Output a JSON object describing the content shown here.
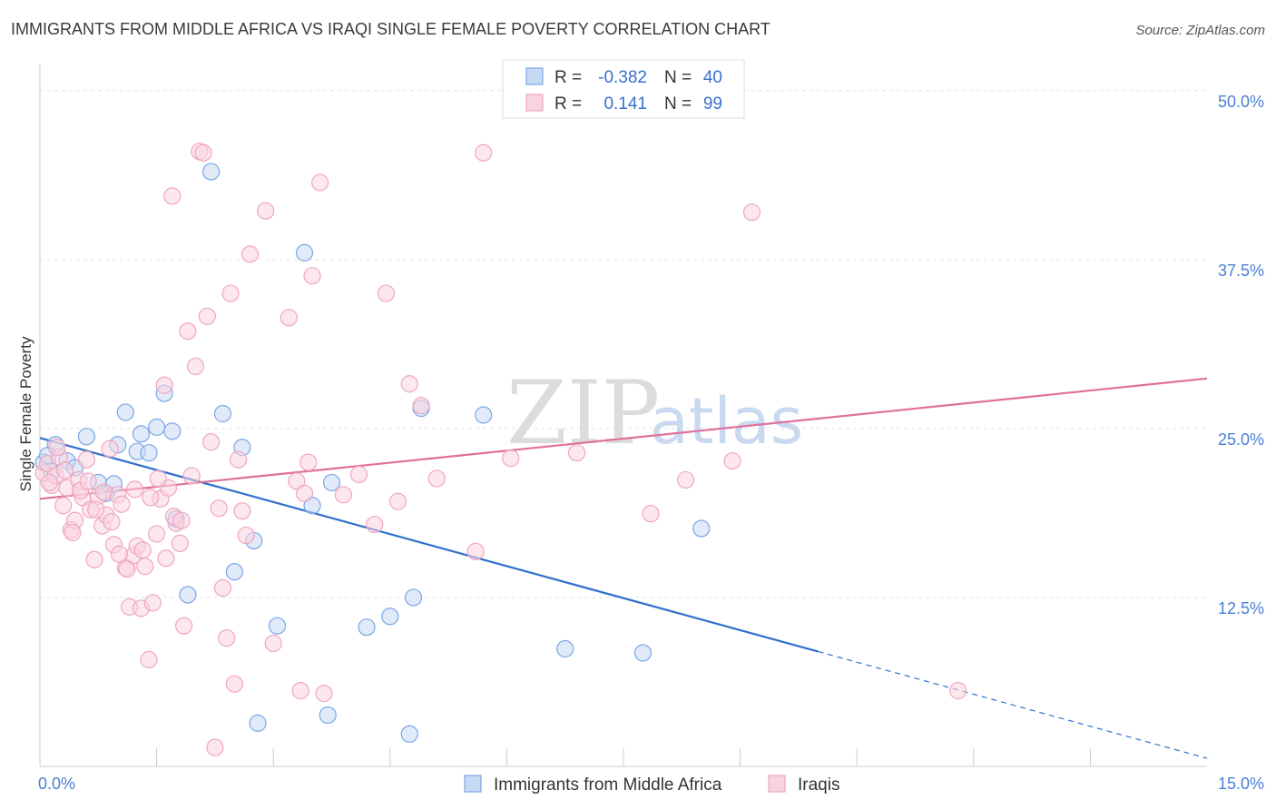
{
  "chart_data": {
    "type": "scatter",
    "title": "IMMIGRANTS FROM MIDDLE AFRICA VS IRAQI SINGLE FEMALE POVERTY CORRELATION CHART",
    "source": "Source: ZipAtlas.com",
    "ylabel": "Single Female Poverty",
    "xlim": [
      0,
      15
    ],
    "ylim": [
      0,
      52
    ],
    "x_tick_labels": [
      {
        "value": 0,
        "label": "0.0%"
      },
      {
        "value": 15,
        "label": "15.0%"
      }
    ],
    "y_tick_labels": [
      {
        "value": 12.5,
        "label": "12.5%"
      },
      {
        "value": 25,
        "label": "25.0%"
      },
      {
        "value": 37.5,
        "label": "37.5%"
      },
      {
        "value": 50,
        "label": "50.0%"
      }
    ],
    "x_minor_ticks": [
      1.5,
      3.0,
      4.5,
      6.0,
      7.5,
      9.0,
      10.5,
      12.0,
      13.5
    ],
    "watermark": {
      "zip": "ZIP",
      "atlas": "atlas"
    },
    "legend": [
      {
        "r_label": "R =",
        "r_value": "-0.382",
        "n_label": "N =",
        "n_value": "40"
      },
      {
        "r_label": "R =",
        "r_value": "0.141",
        "n_label": "N =",
        "n_value": "99"
      }
    ],
    "series": [
      {
        "name": "Immigrants from Middle Africa",
        "color": "#7aa7e6",
        "fill": "#c6d9f3",
        "line_color": "#2f6fcc",
        "trend": {
          "x0": 0,
          "y0": 24.3,
          "x1": 10.0,
          "y1": 8.5,
          "dash_to_x": 15.0,
          "dash_to_y": 0.6
        },
        "points": [
          [
            0.05,
            22.5
          ],
          [
            0.15,
            21.8
          ],
          [
            0.2,
            23.8
          ],
          [
            0.35,
            22.6
          ],
          [
            0.45,
            22.1
          ],
          [
            0.6,
            24.4
          ],
          [
            0.75,
            21.0
          ],
          [
            0.85,
            20.2
          ],
          [
            0.95,
            20.9
          ],
          [
            1.0,
            23.8
          ],
          [
            1.1,
            26.2
          ],
          [
            1.25,
            23.3
          ],
          [
            1.3,
            24.6
          ],
          [
            1.4,
            23.2
          ],
          [
            1.5,
            25.1
          ],
          [
            1.6,
            27.6
          ],
          [
            1.7,
            24.8
          ],
          [
            1.75,
            18.3
          ],
          [
            1.9,
            12.7
          ],
          [
            2.2,
            44.0
          ],
          [
            2.35,
            26.1
          ],
          [
            2.5,
            14.4
          ],
          [
            2.6,
            23.6
          ],
          [
            2.75,
            16.7
          ],
          [
            2.8,
            3.2
          ],
          [
            3.05,
            10.4
          ],
          [
            3.4,
            38.0
          ],
          [
            3.5,
            19.3
          ],
          [
            3.7,
            3.8
          ],
          [
            3.75,
            21.0
          ],
          [
            4.2,
            10.3
          ],
          [
            4.5,
            11.1
          ],
          [
            4.75,
            2.4
          ],
          [
            4.8,
            12.5
          ],
          [
            4.9,
            26.5
          ],
          [
            5.7,
            26.0
          ],
          [
            6.75,
            8.7
          ],
          [
            7.75,
            8.4
          ],
          [
            8.5,
            17.6
          ],
          [
            0.1,
            23.0
          ]
        ]
      },
      {
        "name": "Iraqis",
        "color": "#f0a6c0",
        "fill": "#f9d3e0",
        "line_color": "#e0709a",
        "trend": {
          "x0": 0,
          "y0": 19.8,
          "x1": 15.0,
          "y1": 28.7
        },
        "points": [
          [
            0.05,
            21.7
          ],
          [
            0.1,
            22.4
          ],
          [
            0.15,
            20.8
          ],
          [
            0.2,
            21.5
          ],
          [
            0.25,
            22.9
          ],
          [
            0.3,
            19.3
          ],
          [
            0.35,
            20.6
          ],
          [
            0.4,
            17.5
          ],
          [
            0.45,
            18.2
          ],
          [
            0.5,
            21.2
          ],
          [
            0.55,
            19.9
          ],
          [
            0.6,
            22.7
          ],
          [
            0.65,
            19.0
          ],
          [
            0.7,
            15.3
          ],
          [
            0.75,
            20.0
          ],
          [
            0.8,
            17.8
          ],
          [
            0.85,
            18.6
          ],
          [
            0.9,
            23.5
          ],
          [
            0.95,
            16.4
          ],
          [
            1.0,
            20.1
          ],
          [
            1.05,
            19.4
          ],
          [
            1.1,
            14.7
          ],
          [
            1.15,
            11.8
          ],
          [
            1.2,
            15.6
          ],
          [
            1.25,
            16.3
          ],
          [
            1.3,
            11.7
          ],
          [
            1.35,
            14.8
          ],
          [
            1.4,
            7.9
          ],
          [
            1.45,
            12.1
          ],
          [
            1.5,
            17.2
          ],
          [
            1.55,
            19.8
          ],
          [
            1.6,
            28.2
          ],
          [
            1.65,
            20.6
          ],
          [
            1.7,
            42.2
          ],
          [
            1.75,
            18.0
          ],
          [
            1.8,
            16.5
          ],
          [
            1.85,
            10.4
          ],
          [
            1.9,
            32.2
          ],
          [
            1.95,
            21.5
          ],
          [
            2.0,
            29.6
          ],
          [
            2.05,
            45.5
          ],
          [
            2.1,
            45.4
          ],
          [
            2.15,
            33.3
          ],
          [
            2.2,
            24.0
          ],
          [
            2.25,
            1.4
          ],
          [
            2.3,
            19.1
          ],
          [
            2.35,
            13.2
          ],
          [
            2.4,
            9.5
          ],
          [
            2.45,
            35.0
          ],
          [
            2.5,
            6.1
          ],
          [
            2.55,
            22.7
          ],
          [
            2.6,
            18.9
          ],
          [
            2.65,
            17.1
          ],
          [
            2.7,
            37.9
          ],
          [
            2.9,
            41.1
          ],
          [
            3.0,
            9.1
          ],
          [
            3.2,
            33.2
          ],
          [
            3.3,
            21.1
          ],
          [
            3.35,
            5.6
          ],
          [
            3.4,
            20.2
          ],
          [
            3.45,
            22.5
          ],
          [
            3.5,
            36.3
          ],
          [
            3.6,
            43.2
          ],
          [
            3.65,
            5.4
          ],
          [
            3.9,
            20.1
          ],
          [
            4.1,
            21.6
          ],
          [
            4.3,
            17.9
          ],
          [
            4.45,
            35.0
          ],
          [
            4.6,
            19.6
          ],
          [
            4.75,
            28.3
          ],
          [
            4.9,
            26.7
          ],
          [
            5.1,
            21.3
          ],
          [
            5.6,
            15.9
          ],
          [
            5.7,
            45.4
          ],
          [
            6.05,
            22.8
          ],
          [
            6.9,
            23.2
          ],
          [
            7.85,
            18.7
          ],
          [
            8.3,
            21.2
          ],
          [
            8.9,
            22.6
          ],
          [
            9.15,
            41.0
          ],
          [
            11.8,
            5.6
          ],
          [
            0.12,
            21.0
          ],
          [
            0.22,
            23.6
          ],
          [
            0.32,
            21.9
          ],
          [
            0.42,
            17.3
          ],
          [
            0.52,
            20.4
          ],
          [
            0.62,
            21.1
          ],
          [
            0.72,
            19.0
          ],
          [
            0.82,
            20.3
          ],
          [
            0.92,
            18.1
          ],
          [
            1.02,
            15.7
          ],
          [
            1.12,
            14.6
          ],
          [
            1.22,
            20.5
          ],
          [
            1.32,
            16.0
          ],
          [
            1.42,
            19.9
          ],
          [
            1.52,
            21.3
          ],
          [
            1.62,
            15.4
          ],
          [
            1.72,
            18.5
          ],
          [
            1.82,
            18.2
          ]
        ]
      }
    ]
  }
}
